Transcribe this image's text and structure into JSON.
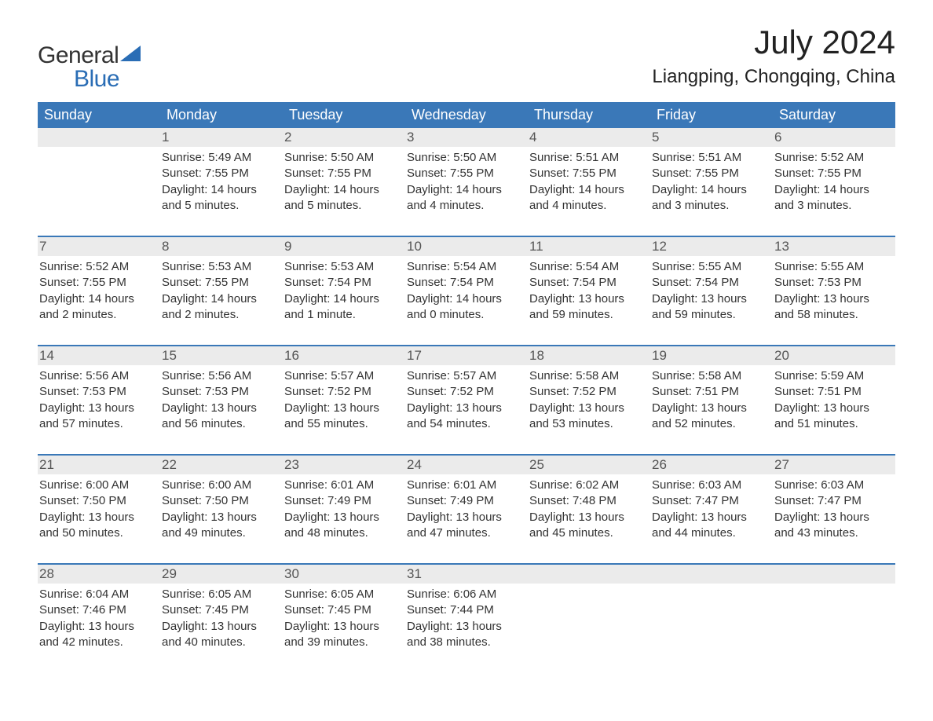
{
  "brand": {
    "word1": "General",
    "word2": "Blue",
    "word1_color": "#333333",
    "word2_color": "#2a6db5",
    "sail_color": "#2a6db5",
    "font_size_pt": 30
  },
  "title": {
    "month_year": "July 2024",
    "location": "Liangping, Chongqing, China",
    "month_fontsize": 42,
    "location_fontsize": 24,
    "text_color": "#222222"
  },
  "colors": {
    "header_bg": "#3a78b8",
    "header_text": "#ffffff",
    "daynum_bg": "#ebebeb",
    "daynum_text": "#555555",
    "body_text": "#333333",
    "week_divider": "#3a78b8",
    "page_bg": "#ffffff"
  },
  "day_names": [
    "Sunday",
    "Monday",
    "Tuesday",
    "Wednesday",
    "Thursday",
    "Friday",
    "Saturday"
  ],
  "weeks": [
    [
      {
        "blank": true
      },
      {
        "day": "1",
        "sunrise": "5:49 AM",
        "sunset": "7:55 PM",
        "daylight": "14 hours and 5 minutes."
      },
      {
        "day": "2",
        "sunrise": "5:50 AM",
        "sunset": "7:55 PM",
        "daylight": "14 hours and 5 minutes."
      },
      {
        "day": "3",
        "sunrise": "5:50 AM",
        "sunset": "7:55 PM",
        "daylight": "14 hours and 4 minutes."
      },
      {
        "day": "4",
        "sunrise": "5:51 AM",
        "sunset": "7:55 PM",
        "daylight": "14 hours and 4 minutes."
      },
      {
        "day": "5",
        "sunrise": "5:51 AM",
        "sunset": "7:55 PM",
        "daylight": "14 hours and 3 minutes."
      },
      {
        "day": "6",
        "sunrise": "5:52 AM",
        "sunset": "7:55 PM",
        "daylight": "14 hours and 3 minutes."
      }
    ],
    [
      {
        "day": "7",
        "sunrise": "5:52 AM",
        "sunset": "7:55 PM",
        "daylight": "14 hours and 2 minutes."
      },
      {
        "day": "8",
        "sunrise": "5:53 AM",
        "sunset": "7:55 PM",
        "daylight": "14 hours and 2 minutes."
      },
      {
        "day": "9",
        "sunrise": "5:53 AM",
        "sunset": "7:54 PM",
        "daylight": "14 hours and 1 minute."
      },
      {
        "day": "10",
        "sunrise": "5:54 AM",
        "sunset": "7:54 PM",
        "daylight": "14 hours and 0 minutes."
      },
      {
        "day": "11",
        "sunrise": "5:54 AM",
        "sunset": "7:54 PM",
        "daylight": "13 hours and 59 minutes."
      },
      {
        "day": "12",
        "sunrise": "5:55 AM",
        "sunset": "7:54 PM",
        "daylight": "13 hours and 59 minutes."
      },
      {
        "day": "13",
        "sunrise": "5:55 AM",
        "sunset": "7:53 PM",
        "daylight": "13 hours and 58 minutes."
      }
    ],
    [
      {
        "day": "14",
        "sunrise": "5:56 AM",
        "sunset": "7:53 PM",
        "daylight": "13 hours and 57 minutes."
      },
      {
        "day": "15",
        "sunrise": "5:56 AM",
        "sunset": "7:53 PM",
        "daylight": "13 hours and 56 minutes."
      },
      {
        "day": "16",
        "sunrise": "5:57 AM",
        "sunset": "7:52 PM",
        "daylight": "13 hours and 55 minutes."
      },
      {
        "day": "17",
        "sunrise": "5:57 AM",
        "sunset": "7:52 PM",
        "daylight": "13 hours and 54 minutes."
      },
      {
        "day": "18",
        "sunrise": "5:58 AM",
        "sunset": "7:52 PM",
        "daylight": "13 hours and 53 minutes."
      },
      {
        "day": "19",
        "sunrise": "5:58 AM",
        "sunset": "7:51 PM",
        "daylight": "13 hours and 52 minutes."
      },
      {
        "day": "20",
        "sunrise": "5:59 AM",
        "sunset": "7:51 PM",
        "daylight": "13 hours and 51 minutes."
      }
    ],
    [
      {
        "day": "21",
        "sunrise": "6:00 AM",
        "sunset": "7:50 PM",
        "daylight": "13 hours and 50 minutes."
      },
      {
        "day": "22",
        "sunrise": "6:00 AM",
        "sunset": "7:50 PM",
        "daylight": "13 hours and 49 minutes."
      },
      {
        "day": "23",
        "sunrise": "6:01 AM",
        "sunset": "7:49 PM",
        "daylight": "13 hours and 48 minutes."
      },
      {
        "day": "24",
        "sunrise": "6:01 AM",
        "sunset": "7:49 PM",
        "daylight": "13 hours and 47 minutes."
      },
      {
        "day": "25",
        "sunrise": "6:02 AM",
        "sunset": "7:48 PM",
        "daylight": "13 hours and 45 minutes."
      },
      {
        "day": "26",
        "sunrise": "6:03 AM",
        "sunset": "7:47 PM",
        "daylight": "13 hours and 44 minutes."
      },
      {
        "day": "27",
        "sunrise": "6:03 AM",
        "sunset": "7:47 PM",
        "daylight": "13 hours and 43 minutes."
      }
    ],
    [
      {
        "day": "28",
        "sunrise": "6:04 AM",
        "sunset": "7:46 PM",
        "daylight": "13 hours and 42 minutes."
      },
      {
        "day": "29",
        "sunrise": "6:05 AM",
        "sunset": "7:45 PM",
        "daylight": "13 hours and 40 minutes."
      },
      {
        "day": "30",
        "sunrise": "6:05 AM",
        "sunset": "7:45 PM",
        "daylight": "13 hours and 39 minutes."
      },
      {
        "day": "31",
        "sunrise": "6:06 AM",
        "sunset": "7:44 PM",
        "daylight": "13 hours and 38 minutes."
      },
      {
        "blank": true
      },
      {
        "blank": true
      },
      {
        "blank": true
      }
    ]
  ],
  "labels": {
    "sunrise": "Sunrise:",
    "sunset": "Sunset:",
    "daylight": "Daylight:"
  },
  "typography": {
    "body_fontsize": 15,
    "dayheader_fontsize": 18,
    "daynum_fontsize": 17,
    "font_family": "Arial"
  }
}
